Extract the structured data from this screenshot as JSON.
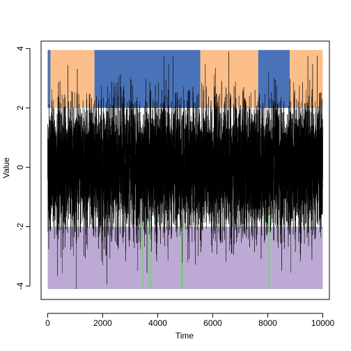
{
  "chart_data": {
    "type": "line",
    "title": "",
    "xlabel": "Time",
    "ylabel": "Value",
    "xlim": [
      -240,
      10240
    ],
    "ylim": [
      -4.45,
      4.25
    ],
    "x_ticks": [
      0,
      2000,
      4000,
      6000,
      8000,
      10000
    ],
    "x_tick_labels": [
      "0",
      "2000",
      "4000",
      "6000",
      "8000",
      "10000"
    ],
    "y_ticks": [
      -4,
      -2,
      0,
      2,
      4
    ],
    "y_tick_labels": [
      "-4",
      "-2",
      "0",
      "2",
      "4"
    ],
    "grid": false,
    "series": [
      {
        "color": "#000000",
        "n_points": 10000,
        "x_range": [
          1,
          10000
        ],
        "y_mean": 0.0,
        "y_min": -4.1,
        "y_max": 3.9
      }
    ],
    "upper_regime_band": {
      "y_range": [
        2.0,
        3.95
      ],
      "segments": [
        {
          "x_start": 0,
          "x_end": 100,
          "color": "#4A72B8"
        },
        {
          "x_start": 100,
          "x_end": 1700,
          "color": "#FDBF8A"
        },
        {
          "x_start": 1700,
          "x_end": 5550,
          "color": "#4A72B8"
        },
        {
          "x_start": 5550,
          "x_end": 7650,
          "color": "#FDBF8A"
        },
        {
          "x_start": 7650,
          "x_end": 8800,
          "color": "#4A72B8"
        },
        {
          "x_start": 8800,
          "x_end": 10000,
          "color": "#FDBF8A"
        }
      ]
    },
    "lower_regime_band": {
      "y_range": [
        -4.1,
        -2.0
      ],
      "base_color": "#BDAAD4",
      "highlight_color": "#7FC97F",
      "highlights": [
        3450,
        3680,
        3750,
        4860,
        4880,
        4900,
        8030
      ]
    }
  }
}
